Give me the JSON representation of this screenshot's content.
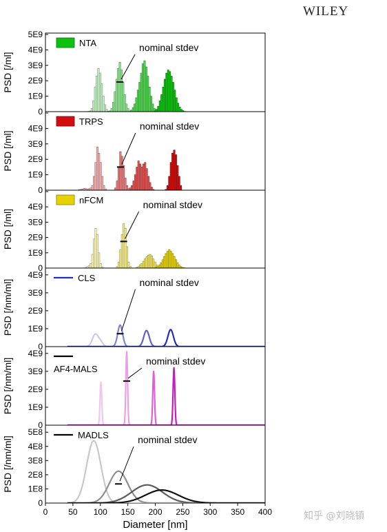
{
  "publisher": "WILEY",
  "watermark": "知乎 @刘晓镇",
  "annotation_text": "nominal stdev",
  "chart_data": {
    "type": "stacked-histograms",
    "x_axis": {
      "label": "Diameter [nm]",
      "range": [
        0,
        400
      ],
      "ticks": [
        0,
        50,
        100,
        150,
        200,
        250,
        300,
        350,
        400
      ]
    },
    "panels": [
      {
        "id": "nta",
        "kind": "bar",
        "legend": "NTA",
        "legend_swatch": "box",
        "ylabel": "PSD [/ml]",
        "ymax": 5000000000.0,
        "yticks": [
          "0",
          "1E9",
          "2E9",
          "3E9",
          "4E9",
          "5E9"
        ],
        "colors": [
          "#c6f3c6",
          "#8ee68e",
          "#52d652",
          "#0fc10f"
        ],
        "annotation_at_series": 1,
        "series": [
          {
            "x_start": 77,
            "bin": 3,
            "values": [
              20000000.0,
              50000000.0,
              200000000.0,
              700000000.0,
              1600000000.0,
              2300000000.0,
              2800000000.0,
              2500000000.0,
              1800000000.0,
              1000000000.0,
              450000000.0,
              150000000.0,
              40000000.0
            ]
          },
          {
            "x_start": 113,
            "bin": 3,
            "values": [
              20000000.0,
              50000000.0,
              200000000.0,
              600000000.0,
              1300000000.0,
              2100000000.0,
              2800000000.0,
              3200000000.0,
              2700000000.0,
              1900000000.0,
              1100000000.0,
              500000000.0,
              200000000.0,
              50000000.0
            ]
          },
          {
            "x_start": 155,
            "bin": 3,
            "values": [
              100000000.0,
              250000000.0,
              500000000.0,
              900000000.0,
              1400000000.0,
              1900000000.0,
              2500000000.0,
              3100000000.0,
              3300000000.0,
              2900000000.0,
              2300000000.0,
              1600000000.0,
              1000000000.0,
              500000000.0,
              200000000.0,
              50000000.0
            ]
          },
          {
            "x_start": 198,
            "bin": 3,
            "values": [
              50000000.0,
              150000000.0,
              350000000.0,
              700000000.0,
              1100000000.0,
              1600000000.0,
              2100000000.0,
              2500000000.0,
              2700000000.0,
              2600000000.0,
              2300000000.0,
              1900000000.0,
              1400000000.0,
              900000000.0,
              550000000.0,
              300000000.0,
              150000000.0,
              70000000.0,
              20000000.0
            ]
          }
        ]
      },
      {
        "id": "trps",
        "kind": "bar",
        "legend": "TRPS",
        "legend_swatch": "box",
        "ylabel": "PSD [/ml]",
        "ymax": 5000000000.0,
        "yticks": [
          "0",
          "1E9",
          "2E9",
          "3E9",
          "4E9",
          ""
        ],
        "colors": [
          "#f3b3b3",
          "#ea8080",
          "#e25555",
          "#d10f0f"
        ],
        "annotation_at_series": 1,
        "series": [
          {
            "x_start": 60,
            "bin": 3,
            "values": [
              30000000.0,
              50000000.0,
              80000000.0,
              120000000.0,
              100000000.0,
              80000000.0,
              100000000.0,
              150000000.0,
              300000000.0,
              900000000.0,
              1800000000.0,
              2800000000.0,
              2400000000.0,
              1800000000.0,
              900000000.0,
              300000000.0,
              80000000.0
            ]
          },
          {
            "x_start": 126,
            "bin": 3,
            "values": [
              150000000.0,
              600000000.0,
              1500000000.0,
              2500000000.0,
              2200000000.0,
              1600000000.0,
              800000000.0,
              300000000.0,
              100000000.0
            ]
          },
          {
            "x_start": 153,
            "bin": 3,
            "values": [
              150000000.0,
              300000000.0,
              600000000.0,
              1000000000.0,
              1500000000.0,
              1900000000.0,
              1700000000.0,
              1500000000.0,
              1700000000.0,
              1800000000.0,
              1400000000.0,
              900000000.0,
              500000000.0,
              200000000.0,
              50000000.0
            ]
          },
          {
            "x_start": 218,
            "bin": 3,
            "values": [
              50000000.0,
              300000000.0,
              900000000.0,
              1800000000.0,
              2400000000.0,
              2600000000.0,
              2300000000.0,
              1600000000.0,
              900000000.0,
              300000000.0
            ]
          }
        ]
      },
      {
        "id": "nfcm",
        "kind": "bar",
        "legend": "nFCM",
        "legend_swatch": "box",
        "ylabel": "PSD [/ml]",
        "ymax": 5000000000.0,
        "yticks": [
          "0",
          "1E9",
          "2E9",
          "3E9",
          "4E9",
          ""
        ],
        "colors": [
          "#fbf7b8",
          "#f6ee8a",
          "#f0e35e",
          "#e6d200"
        ],
        "annotation_at_series": 1,
        "series": [
          {
            "x_start": 72,
            "bin": 3,
            "values": [
              50000000.0,
              100000000.0,
              150000000.0,
              300000000.0,
              900000000.0,
              1900000000.0,
              2600000000.0,
              2200000000.0,
              1000000000.0,
              300000000.0,
              80000000.0
            ]
          },
          {
            "x_start": 129,
            "bin": 3,
            "values": [
              100000000.0,
              400000000.0,
              1200000000.0,
              2200000000.0,
              2900000000.0,
              2600000000.0,
              1400000000.0,
              400000000.0,
              100000000.0
            ]
          },
          {
            "x_start": 165,
            "bin": 3,
            "values": [
              50000000.0,
              100000000.0,
              200000000.0,
              300000000.0,
              450000000.0,
              600000000.0,
              750000000.0,
              850000000.0,
              900000000.0,
              800000000.0,
              600000000.0,
              400000000.0,
              200000000.0,
              80000000.0
            ]
          },
          {
            "x_start": 200,
            "bin": 3,
            "values": [
              50000000.0,
              100000000.0,
              200000000.0,
              350000000.0,
              550000000.0,
              750000000.0,
              950000000.0,
              1100000000.0,
              1200000000.0,
              1100000000.0,
              950000000.0,
              750000000.0,
              550000000.0,
              350000000.0,
              200000000.0,
              100000000.0,
              50000000.0,
              20000000.0
            ]
          }
        ]
      },
      {
        "id": "cls",
        "kind": "line",
        "legend": "CLS",
        "legend_swatch": "line",
        "ylabel": "PSD [/nm/ml]",
        "ymax": 4300000000.0,
        "yticks": [
          "0",
          "1E9",
          "2E9",
          "3E9",
          "4E9"
        ],
        "colors": [
          "#c7cbf0",
          "#7d84d6",
          "#5b63c9",
          "#2230b5"
        ],
        "annotation_at_series": 1,
        "series": [
          {
            "center": 91,
            "width": 5.5,
            "peak": 700000000.0,
            "extra": {
              "center": 101,
              "width": 4,
              "peak": 220000000.0
            }
          },
          {
            "center": 136,
            "width": 4.5,
            "peak": 1200000000.0
          },
          {
            "center": 184,
            "width": 5,
            "peak": 900000000.0
          },
          {
            "center": 228,
            "width": 5,
            "peak": 950000000.0
          }
        ]
      },
      {
        "id": "af4mals",
        "kind": "line",
        "legend": "AF4-MALS",
        "legend_swatch": "line",
        "ylabel": "PSD [/nm/ml]",
        "ymax": 4300000000.0,
        "yticks": [
          "0",
          "1E9",
          "2E9",
          "3E9",
          "4E9"
        ],
        "colors": [
          "#f4c6ee",
          "#eba0e6",
          "#de60d6",
          "#c91ac1"
        ],
        "annotation_at_series": 1,
        "series": [
          {
            "center": 101,
            "width": 1.6,
            "peak": 2400000000.0
          },
          {
            "center": 148,
            "width": 1.6,
            "peak": 4100000000.0
          },
          {
            "center": 197,
            "width": 1.6,
            "peak": 3000000000.0
          },
          {
            "center": 234,
            "width": 1.6,
            "peak": 3200000000.0
          }
        ]
      },
      {
        "id": "madls",
        "kind": "line",
        "legend": "MADLS",
        "legend_swatch": "line",
        "ylabel": "PSD [/nm/ml]",
        "ymax": 540000000.0,
        "yticks": [
          "0",
          "1E8",
          "2E8",
          "3E8",
          "4E8",
          "5E8"
        ],
        "colors": [
          "#c8c8c8",
          "#8e8e8e",
          "#5a5a5a",
          "#111111"
        ],
        "annotation_at_series": 1,
        "series": [
          {
            "center": 88,
            "width": 13,
            "peak": 440000000.0
          },
          {
            "center": 133,
            "width": 17,
            "peak": 225000000.0
          },
          {
            "center": 185,
            "width": 28,
            "peak": 128000000.0
          },
          {
            "center": 212,
            "width": 30,
            "peak": 92000000.0
          }
        ]
      }
    ]
  }
}
